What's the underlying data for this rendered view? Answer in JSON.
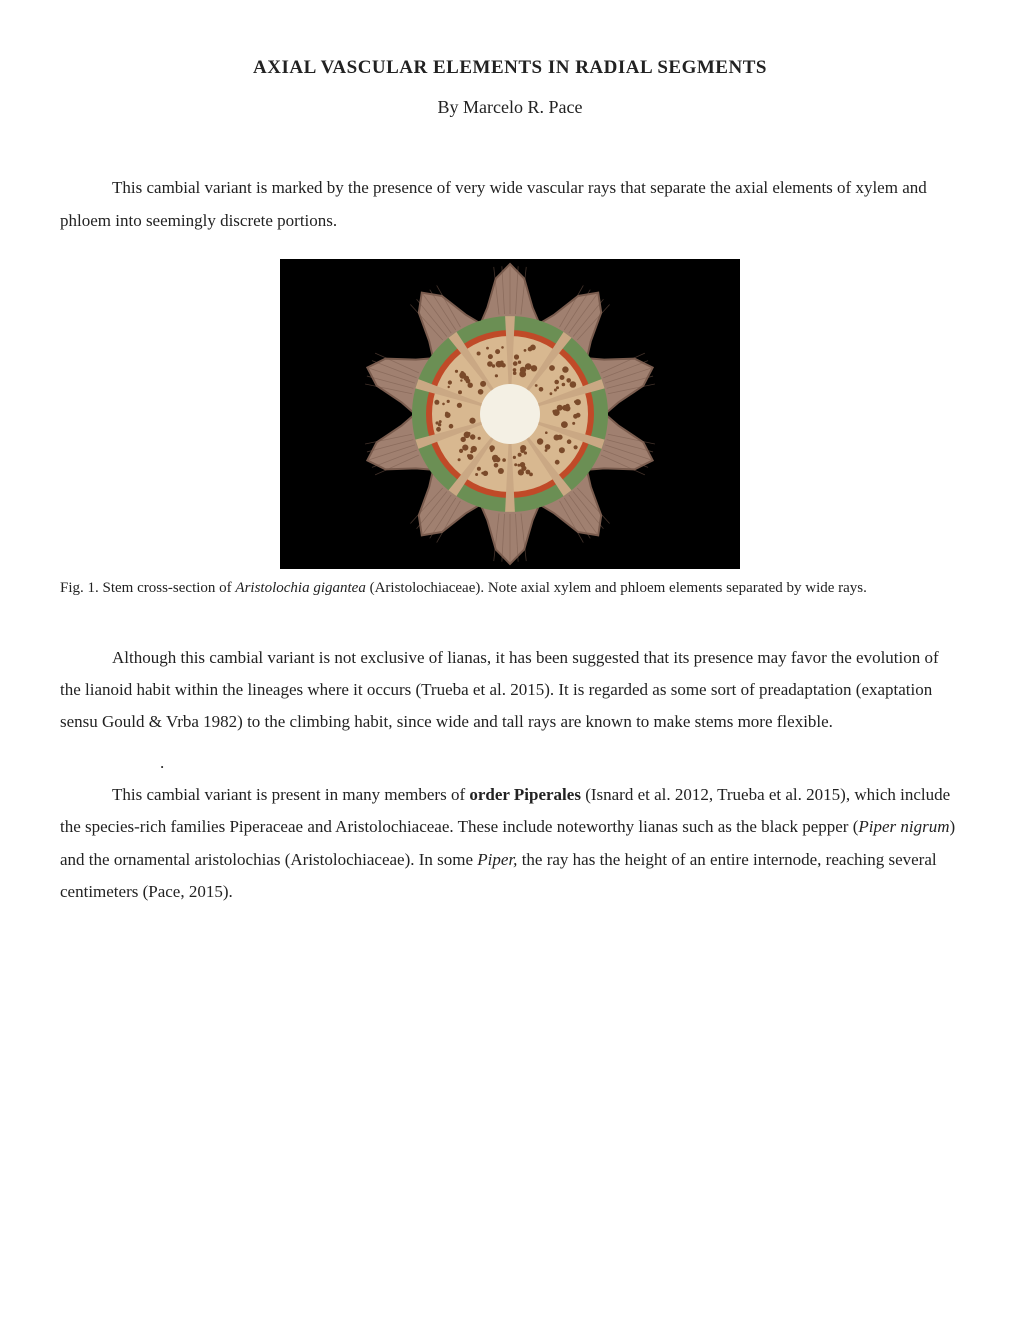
{
  "title": "AXIAL VASCULAR ELEMENTS IN RADIAL SEGMENTS",
  "byline": "By Marcelo R. Pace",
  "p1": "This cambial variant is marked by the presence of very wide vascular rays that separate the axial elements of xylem and phloem into seemingly discrete portions.",
  "figure": {
    "caption_pre": "Fig. 1. Stem cross-section of ",
    "caption_em": "Aristolochia gigantea",
    "caption_post": " (Aristolochiaceae). Note axial xylem and phloem elements separated by wide rays.",
    "bg": "#000000",
    "bark": "#a08070",
    "bark_dark": "#7a5c4e",
    "phloem": "#6b8f54",
    "cambium": "#c04a28",
    "xylem": "#d8b890",
    "vessel": "#7a4a2a",
    "pith": "#f4f0e4",
    "ray": "#caa884",
    "lobes": 10,
    "segments": 10
  },
  "p2": "Although this cambial variant is not exclusive of lianas, it has been suggested that its presence may favor the evolution of the lianoid habit within the lineages where it occurs (Trueba et al. 2015). It is regarded as some sort of preadaptation (exaptation sensu Gould & Vrba 1982) to the climbing habit, since wide and tall rays are known to make stems more flexible.",
  "p3": {
    "a": "This cambial variant is present in many members of ",
    "b_bold": "order Piperales",
    "c": " (Isnard et al. 2012, Trueba et al. 2015), which include the species-rich families Piperaceae and Aristolochiaceae. These include noteworthy lianas such as the black pepper (",
    "d_em": "Piper nigrum",
    "e": ") and the ornamental aristolochias (Aristolochiaceae). In some ",
    "f_em": "Piper,",
    "g": " the ray has the height of an entire internode, reaching several centimeters (Pace, 2015)."
  }
}
